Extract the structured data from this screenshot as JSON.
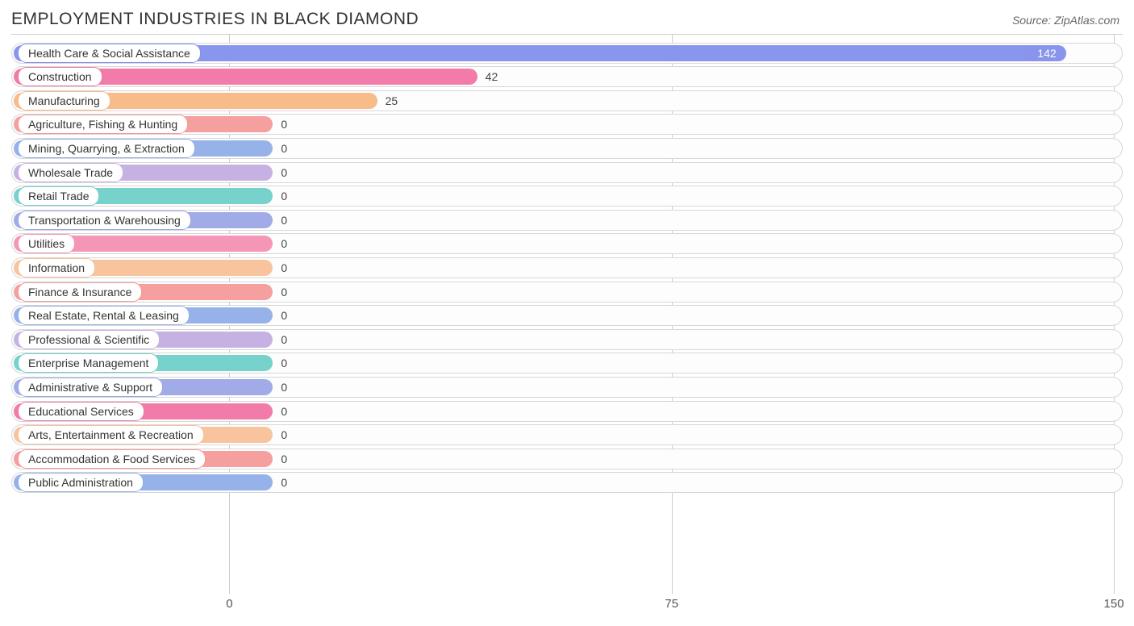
{
  "title": "EMPLOYMENT INDUSTRIES IN BLACK DIAMOND",
  "source": "Source: ZipAtlas.com",
  "chart": {
    "type": "bar-horizontal",
    "background_color": "#ffffff",
    "track_border_color": "#d7d7d7",
    "track_bg_color": "#fdfdfd",
    "grid_color": "#cccccc",
    "label_fontsize": 14,
    "title_fontsize": 21,
    "axis_fontsize": 15,
    "xlim": [
      -37,
      151.5
    ],
    "xticks": [
      0,
      75,
      150
    ],
    "zero_value_fill_pct": 23.5,
    "series": [
      {
        "label": "Health Care & Social Assistance",
        "value": 142,
        "color": "#8390ec"
      },
      {
        "label": "Construction",
        "value": 42,
        "color": "#f174a5"
      },
      {
        "label": "Manufacturing",
        "value": 25,
        "color": "#f7b884"
      },
      {
        "label": "Agriculture, Fishing & Hunting",
        "value": 0,
        "color": "#f49a9a"
      },
      {
        "label": "Mining, Quarrying, & Extraction",
        "value": 0,
        "color": "#90aee8"
      },
      {
        "label": "Wholesale Trade",
        "value": 0,
        "color": "#c3aee0"
      },
      {
        "label": "Retail Trade",
        "value": 0,
        "color": "#6fd0c8"
      },
      {
        "label": "Transportation & Warehousing",
        "value": 0,
        "color": "#9ba6e6"
      },
      {
        "label": "Utilities",
        "value": 0,
        "color": "#f590b3"
      },
      {
        "label": "Information",
        "value": 0,
        "color": "#f7c198"
      },
      {
        "label": "Finance & Insurance",
        "value": 0,
        "color": "#f49a9a"
      },
      {
        "label": "Real Estate, Rental & Leasing",
        "value": 0,
        "color": "#90aee8"
      },
      {
        "label": "Professional & Scientific",
        "value": 0,
        "color": "#c3aee0"
      },
      {
        "label": "Enterprise Management",
        "value": 0,
        "color": "#6fd0c8"
      },
      {
        "label": "Administrative & Support",
        "value": 0,
        "color": "#9ba6e6"
      },
      {
        "label": "Educational Services",
        "value": 0,
        "color": "#f174a5"
      },
      {
        "label": "Arts, Entertainment & Recreation",
        "value": 0,
        "color": "#f7c198"
      },
      {
        "label": "Accommodation & Food Services",
        "value": 0,
        "color": "#f49a9a"
      },
      {
        "label": "Public Administration",
        "value": 0,
        "color": "#90aee8"
      }
    ]
  }
}
